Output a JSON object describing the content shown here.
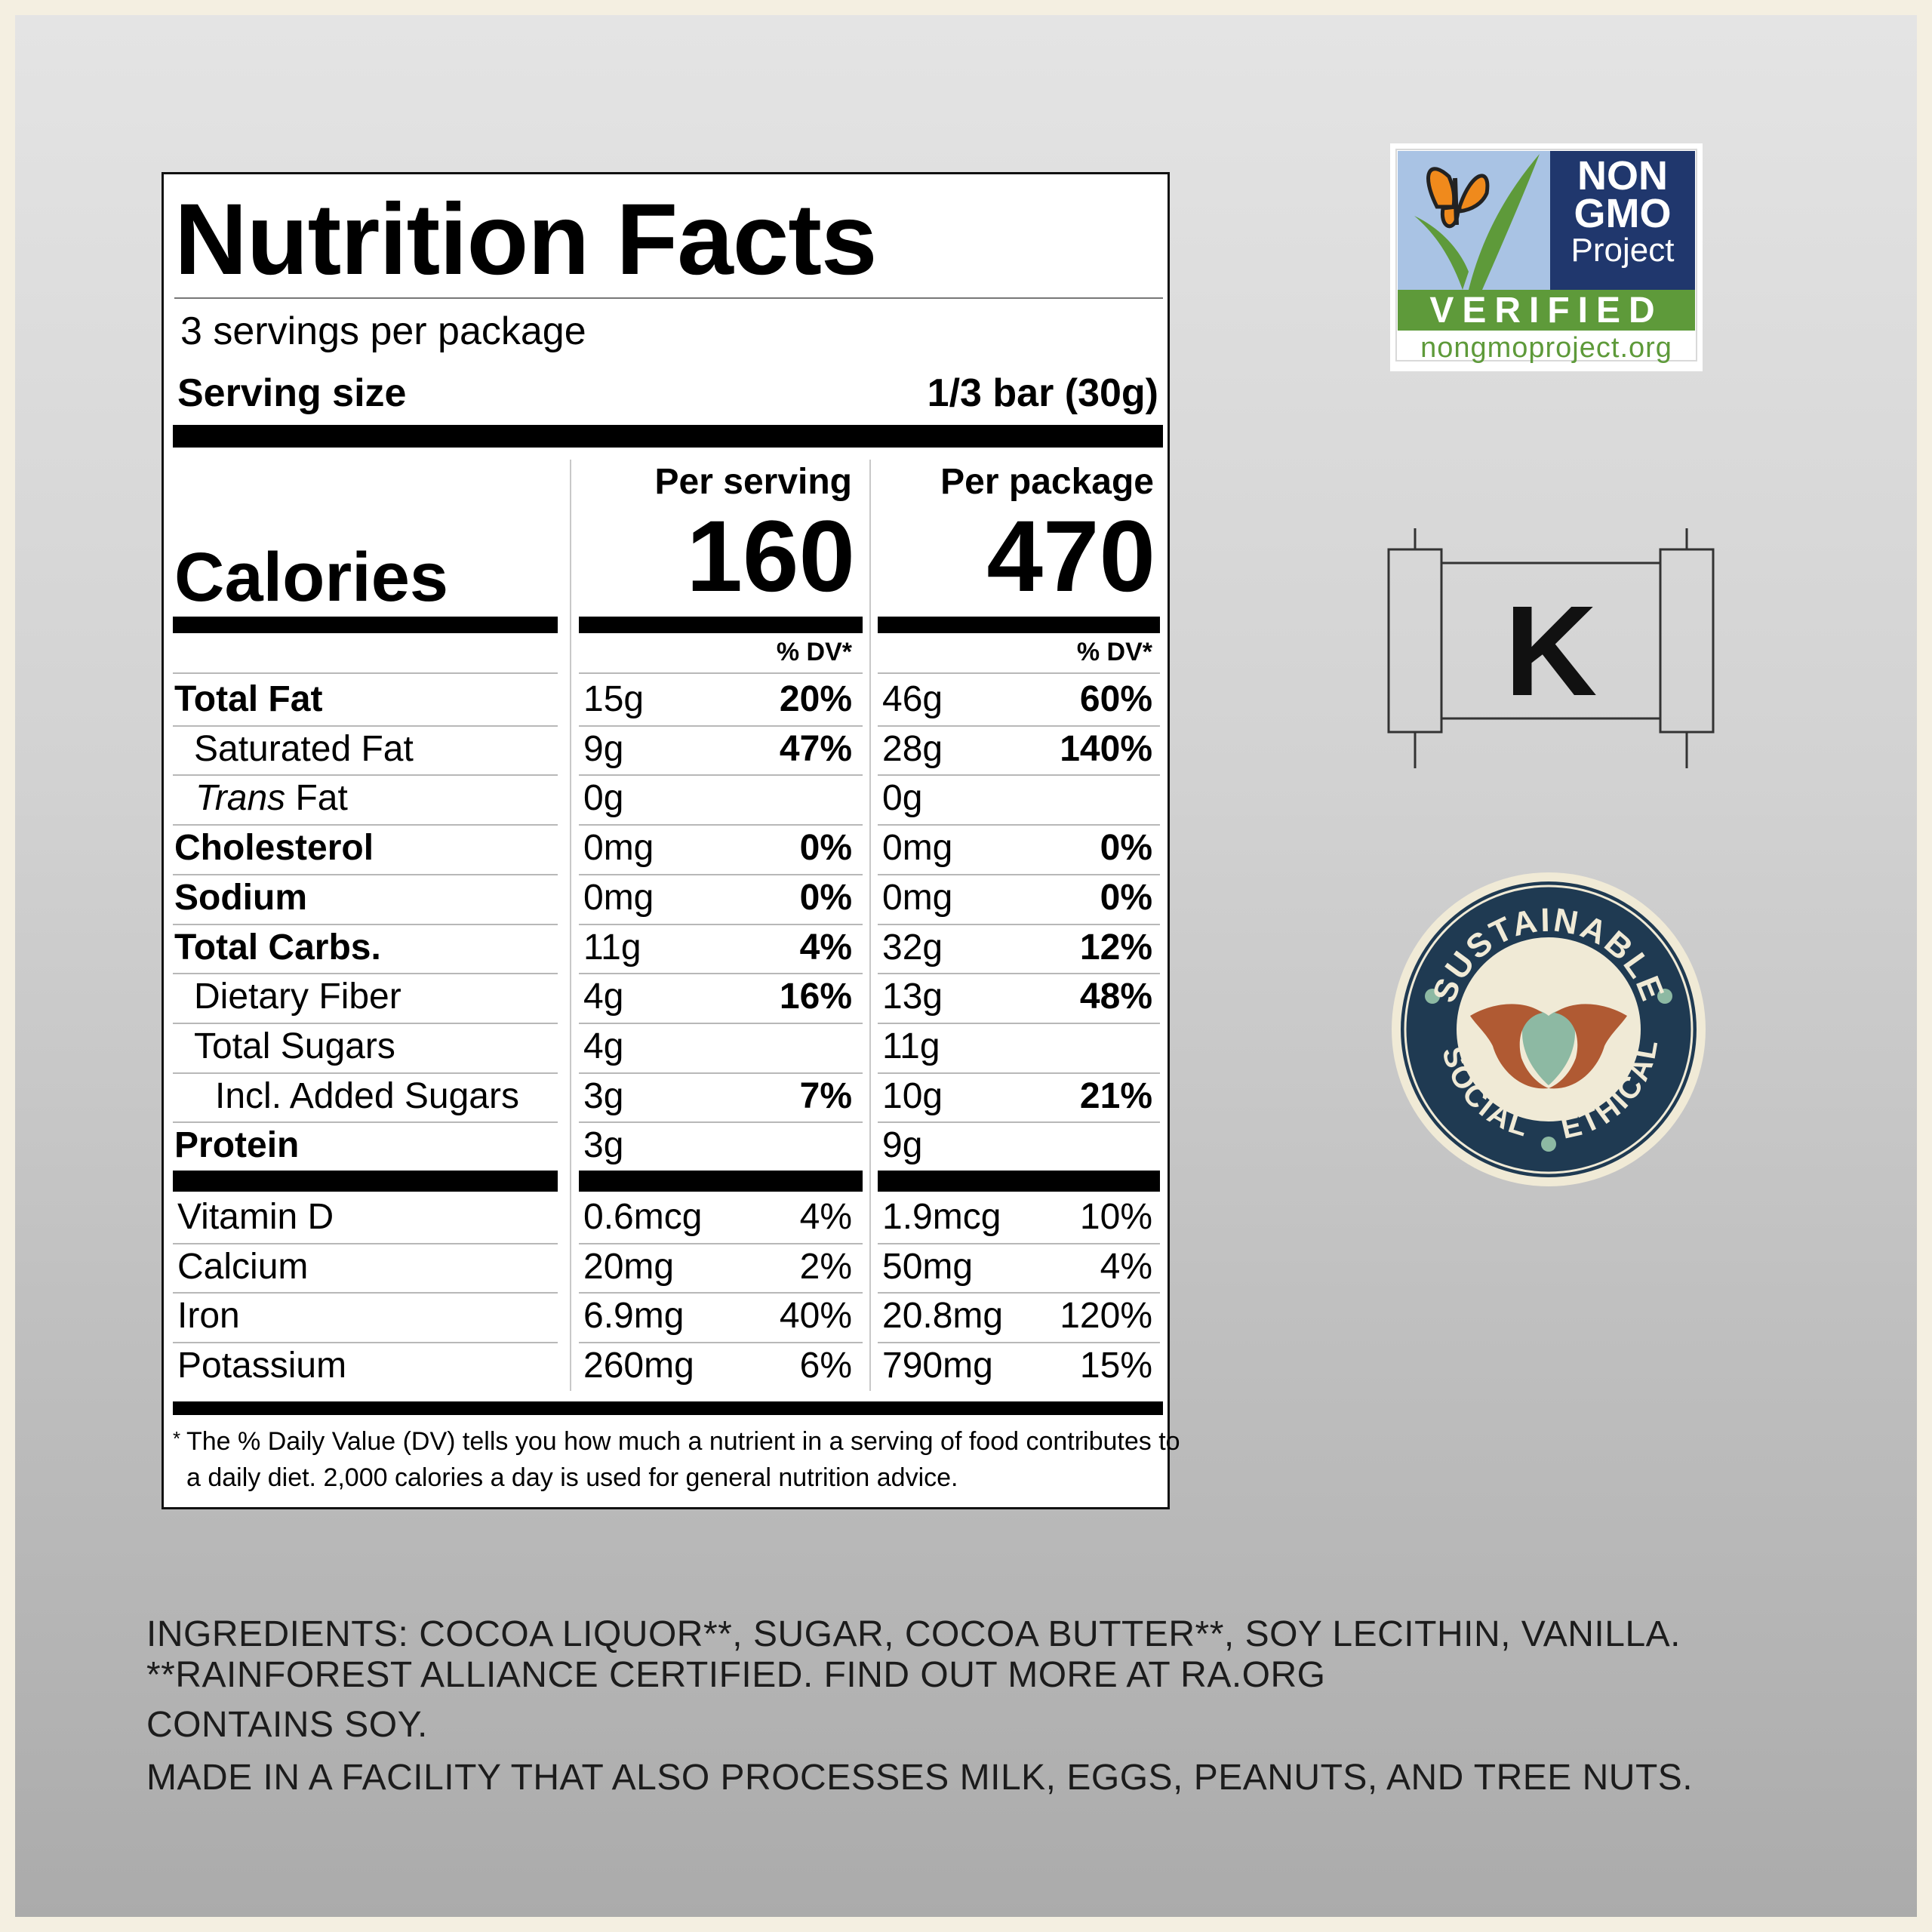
{
  "label": {
    "title": "Nutrition Facts",
    "servings_per_package": "3 servings per package",
    "serving_size_label": "Serving size",
    "serving_size_value": "1/3 bar (30g)",
    "per_serving_header": "Per serving",
    "per_package_header": "Per package",
    "calories_label": "Calories",
    "calories_per_serving": "160",
    "calories_per_package": "470",
    "dv_header": "% DV*",
    "nutrients": [
      {
        "name": "Total Fat",
        "serving": "15g",
        "serving_dv": "20%",
        "package": "46g",
        "package_dv": "60%"
      },
      {
        "name": "Saturated Fat",
        "serving": "9g",
        "serving_dv": "47%",
        "package": "28g",
        "package_dv": "140%"
      },
      {
        "name_italic": "Trans",
        "name_rest": " Fat",
        "serving": "0g",
        "serving_dv": "",
        "package": "0g",
        "package_dv": ""
      },
      {
        "name": "Cholesterol",
        "serving": "0mg",
        "serving_dv": "0%",
        "package": "0mg",
        "package_dv": "0%"
      },
      {
        "name": "Sodium",
        "serving": "0mg",
        "serving_dv": "0%",
        "package": "0mg",
        "package_dv": "0%"
      },
      {
        "name": "Total Carbs.",
        "serving": "11g",
        "serving_dv": "4%",
        "package": "32g",
        "package_dv": "12%"
      },
      {
        "name": "Dietary Fiber",
        "serving": "4g",
        "serving_dv": "16%",
        "package": "13g",
        "package_dv": "48%"
      },
      {
        "name": "Total Sugars",
        "serving": "4g",
        "serving_dv": "",
        "package": "11g",
        "package_dv": ""
      },
      {
        "name": "Incl. Added Sugars",
        "serving": "3g",
        "serving_dv": "7%",
        "package": "10g",
        "package_dv": "21%"
      },
      {
        "name": "Protein",
        "serving": "3g",
        "serving_dv": "",
        "package": "9g",
        "package_dv": ""
      }
    ],
    "vitamins": [
      {
        "name": "Vitamin D",
        "serving": "0.6mcg",
        "serving_dv": "4%",
        "package": "1.9mcg",
        "package_dv": "10%"
      },
      {
        "name": "Calcium",
        "serving": "20mg",
        "serving_dv": "2%",
        "package": "50mg",
        "package_dv": "4%"
      },
      {
        "name": "Iron",
        "serving": "6.9mg",
        "serving_dv": "40%",
        "package": "20.8mg",
        "package_dv": "120%"
      },
      {
        "name": "Potassium",
        "serving": "260mg",
        "serving_dv": "6%",
        "package": "790mg",
        "package_dv": "15%"
      }
    ],
    "footnote_star": "*",
    "footnote_line1": "The % Daily Value (DV) tells you how much a nutrient in a serving of food contributes to",
    "footnote_line2": "a daily diet. 2,000 calories a day is used for general nutrition advice."
  },
  "certifications": {
    "non_gmo": {
      "line1": "NON",
      "line2": "GMO",
      "line3": "Project",
      "verified": "VERIFIED",
      "url": "nongmoproject.org",
      "colors": {
        "blue": "#20376d",
        "sky": "#a9c3e4",
        "green": "#5e9a3a",
        "orange": "#f08a1c"
      }
    },
    "kosher": {
      "letter": "K"
    },
    "sustainable": {
      "top": "SUSTAINABLE",
      "left": "SOCIAL",
      "right": "ETHICAL",
      "colors": {
        "ring": "#1f3a52",
        "cream": "#f0ead6",
        "hands": "#b05a33",
        "leaf": "#8db9a3"
      }
    }
  },
  "ingredients": {
    "line1": "INGREDIENTS: COCOA LIQUOR**, SUGAR, COCOA BUTTER**, SOY LECITHIN, VANILLA.",
    "line2": "**RAINFOREST ALLIANCE CERTIFIED. FIND OUT MORE AT RA.ORG",
    "line3": "CONTAINS SOY.",
    "line4": "MADE IN A FACILITY THAT ALSO PROCESSES MILK, EGGS, PEANUTS, AND TREE NUTS."
  }
}
